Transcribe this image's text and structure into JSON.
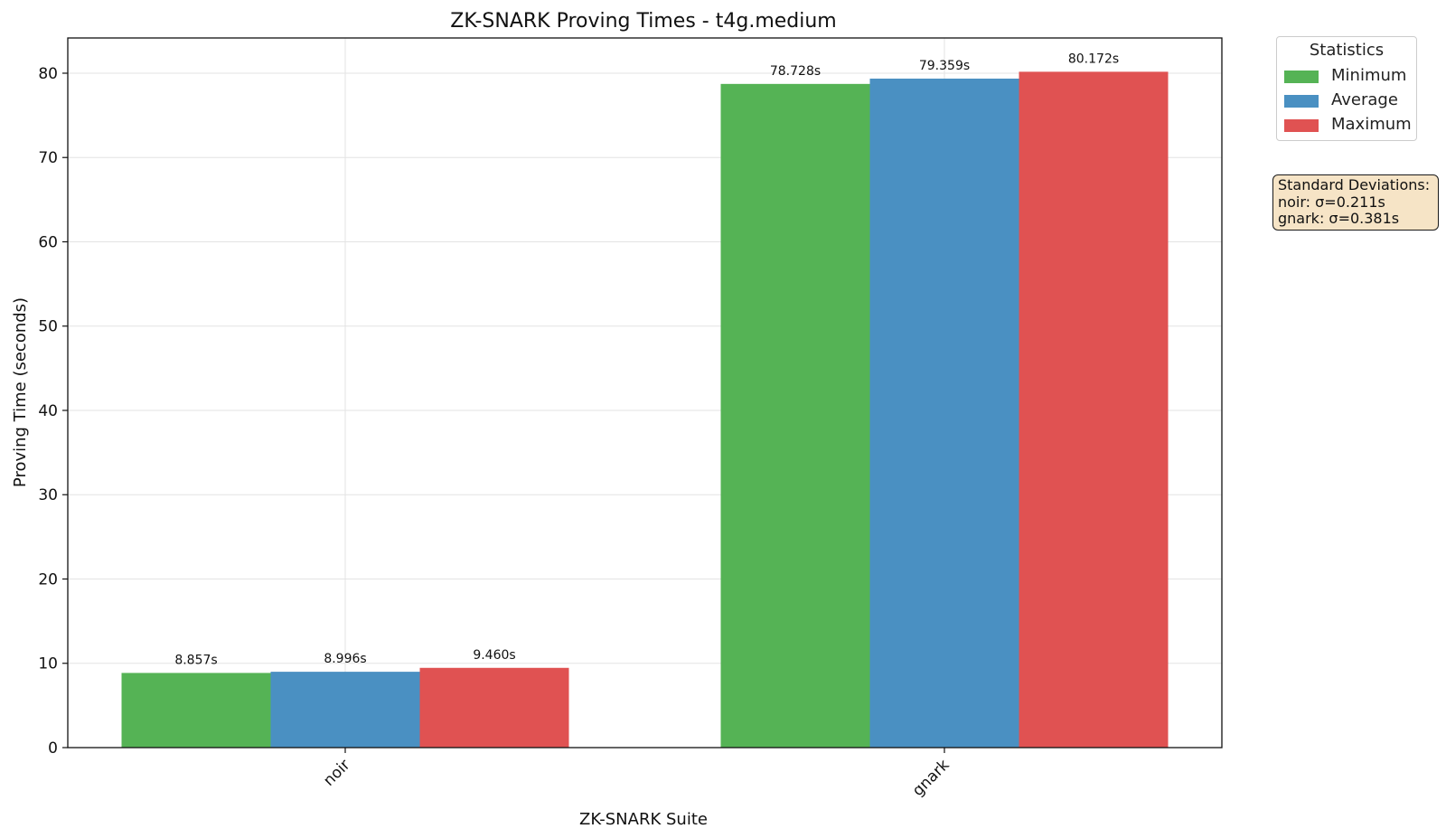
{
  "chart_data": {
    "type": "bar",
    "title": "ZK-SNARK Proving Times - t4g.medium",
    "xlabel": "ZK-SNARK Suite",
    "ylabel": "Proving Time (seconds)",
    "categories": [
      "noir",
      "gnark"
    ],
    "series": [
      {
        "name": "Minimum",
        "values": [
          8.857,
          78.728
        ],
        "labels": [
          "8.857s",
          "78.728s"
        ],
        "color": "#55b355"
      },
      {
        "name": "Average",
        "values": [
          8.996,
          79.359
        ],
        "labels": [
          "8.996s",
          "79.359s"
        ],
        "color": "#4a90c2"
      },
      {
        "name": "Maximum",
        "values": [
          9.46,
          80.172
        ],
        "labels": [
          "9.460s",
          "80.172s"
        ],
        "color": "#e05252"
      }
    ],
    "ylim": [
      0,
      84.18
    ],
    "yticks": [
      0,
      10,
      20,
      30,
      40,
      50,
      60,
      70,
      80
    ],
    "grid": true,
    "legend": {
      "title": "Statistics",
      "placement": "outside-top-right"
    }
  },
  "annotation": {
    "title": "Standard Deviations:",
    "lines": [
      "noir: σ=0.211s",
      "gnark: σ=0.381s"
    ]
  }
}
